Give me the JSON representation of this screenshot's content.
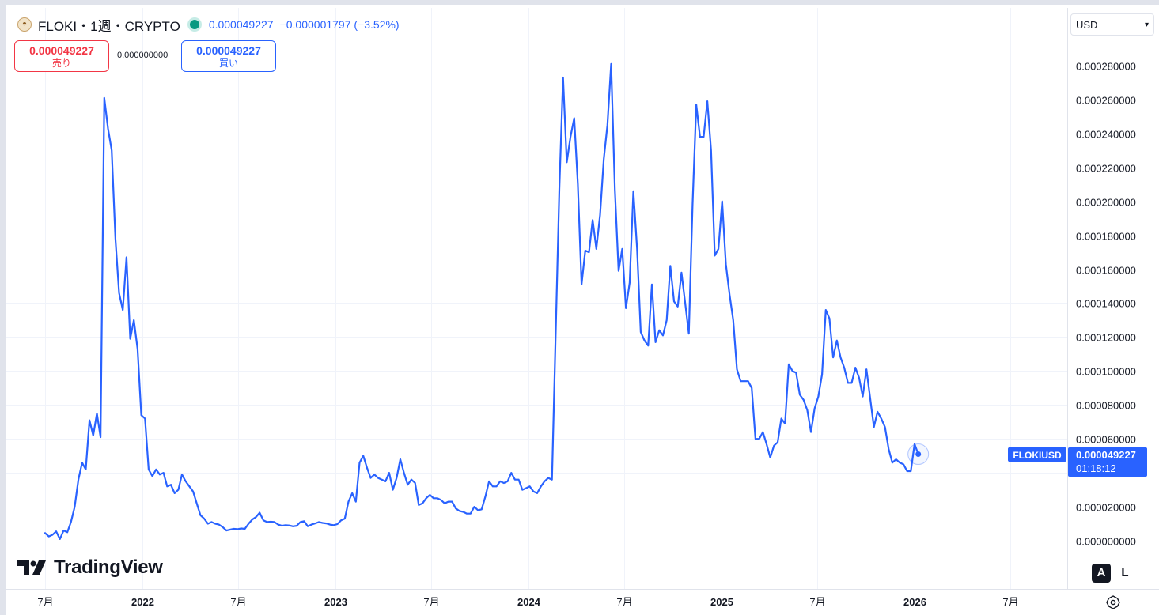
{
  "header": {
    "title": "FLOKI・1週・CRYPTO",
    "price": "0.000049227",
    "change": "−0.000001797 (−3.52%)"
  },
  "trade": {
    "sell_price": "0.000049227",
    "sell_label": "売り",
    "spread": "0.000000000",
    "buy_price": "0.000049227",
    "buy_label": "買い"
  },
  "currency": {
    "selected": "USD"
  },
  "symbol_tag": "FLOKIUSD",
  "last_price": "0.000049227",
  "countdown": "01:18:12",
  "watermark": "TradingView",
  "scale_buttons": [
    "A",
    "L"
  ],
  "colors": {
    "line": "#2962ff",
    "accent": "#2962ff",
    "sell": "#f23645"
  },
  "chart_data": {
    "type": "line",
    "title": "",
    "xlabel": "",
    "ylabel": "",
    "ylim": [
      -1e-05,
      0.00029
    ],
    "yticks": [
      0.00028,
      0.00026,
      0.00024,
      0.00022,
      0.0002,
      0.00018,
      0.00016,
      0.00014,
      0.00012,
      0.0001,
      8e-05,
      6e-05,
      2e-05,
      0.0
    ],
    "ytick_labels": [
      "0.000280000",
      "0.000260000",
      "0.000240000",
      "0.000220000",
      "0.000200000",
      "0.000180000",
      "0.000160000",
      "0.000140000",
      "0.000120000",
      "0.000100000",
      "0.000080000",
      "0.000060000",
      "0.000020000",
      "0.000000000"
    ],
    "xticks": [
      {
        "date": "2021-07-01",
        "label": "7月",
        "bold": false
      },
      {
        "date": "2022-01-01",
        "label": "2022",
        "bold": true
      },
      {
        "date": "2022-07-01",
        "label": "7月",
        "bold": false
      },
      {
        "date": "2023-01-01",
        "label": "2023",
        "bold": true
      },
      {
        "date": "2023-07-01",
        "label": "7月",
        "bold": false
      },
      {
        "date": "2024-01-01",
        "label": "2024",
        "bold": true
      },
      {
        "date": "2024-07-01",
        "label": "7月",
        "bold": false
      },
      {
        "date": "2025-01-01",
        "label": "2025",
        "bold": true
      },
      {
        "date": "2025-07-01",
        "label": "7月",
        "bold": false
      },
      {
        "date": "2026-01-01",
        "label": "2026",
        "bold": true
      },
      {
        "date": "2026-07-01",
        "label": "7月",
        "bold": false
      }
    ],
    "xlim": [
      "2021-05-01",
      "2027-03-01"
    ],
    "grid": true,
    "series": [
      {
        "name": "FLOKIUSD",
        "points": [
          [
            "2021-07-01",
            4.5e-06
          ],
          [
            "2021-07-08",
            2.5e-06
          ],
          [
            "2021-07-15",
            3.5e-06
          ],
          [
            "2021-07-22",
            5.5e-06
          ],
          [
            "2021-07-29",
            1e-06
          ],
          [
            "2021-08-05",
            6e-06
          ],
          [
            "2021-08-12",
            5e-06
          ],
          [
            "2021-08-19",
            1.1e-05
          ],
          [
            "2021-08-26",
            2e-05
          ],
          [
            "2021-09-02",
            3.6e-05
          ],
          [
            "2021-09-09",
            4.6e-05
          ],
          [
            "2021-09-16",
            4.2e-05
          ],
          [
            "2021-09-23",
            7.1e-05
          ],
          [
            "2021-09-30",
            6.2e-05
          ],
          [
            "2021-10-07",
            7.5e-05
          ],
          [
            "2021-10-14",
            6.1e-05
          ],
          [
            "2021-10-21",
            0.000261
          ],
          [
            "2021-10-28",
            0.000243
          ],
          [
            "2021-11-04",
            0.00023
          ],
          [
            "2021-11-11",
            0.000178
          ],
          [
            "2021-11-18",
            0.000146
          ],
          [
            "2021-11-25",
            0.000136
          ],
          [
            "2021-12-02",
            0.000167
          ],
          [
            "2021-12-09",
            0.000119
          ],
          [
            "2021-12-16",
            0.00013
          ],
          [
            "2021-12-23",
            0.000113
          ],
          [
            "2021-12-30",
            7.4e-05
          ],
          [
            "2022-01-06",
            7.2e-05
          ],
          [
            "2022-01-13",
            4.2e-05
          ],
          [
            "2022-01-20",
            3.8e-05
          ],
          [
            "2022-01-27",
            4.2e-05
          ],
          [
            "2022-02-03",
            3.9e-05
          ],
          [
            "2022-02-10",
            4e-05
          ],
          [
            "2022-02-17",
            3.2e-05
          ],
          [
            "2022-02-24",
            3.3e-05
          ],
          [
            "2022-03-03",
            2.8e-05
          ],
          [
            "2022-03-10",
            3e-05
          ],
          [
            "2022-03-17",
            3.9e-05
          ],
          [
            "2022-03-24",
            3.5e-05
          ],
          [
            "2022-03-31",
            3.2e-05
          ],
          [
            "2022-04-07",
            2.9e-05
          ],
          [
            "2022-04-14",
            2.2e-05
          ],
          [
            "2022-04-21",
            1.5e-05
          ],
          [
            "2022-04-28",
            1.3e-05
          ],
          [
            "2022-05-05",
            1e-05
          ],
          [
            "2022-05-12",
            1.1e-05
          ],
          [
            "2022-05-19",
            1e-05
          ],
          [
            "2022-05-26",
            9.5e-06
          ],
          [
            "2022-06-02",
            8e-06
          ],
          [
            "2022-06-09",
            6e-06
          ],
          [
            "2022-06-16",
            6.5e-06
          ],
          [
            "2022-06-23",
            7e-06
          ],
          [
            "2022-06-30",
            6.8e-06
          ],
          [
            "2022-07-07",
            7.2e-06
          ],
          [
            "2022-07-14",
            7e-06
          ],
          [
            "2022-07-21",
            1e-05
          ],
          [
            "2022-07-28",
            1.25e-05
          ],
          [
            "2022-08-04",
            1.4e-05
          ],
          [
            "2022-08-11",
            1.65e-05
          ],
          [
            "2022-08-18",
            1.2e-05
          ],
          [
            "2022-08-25",
            1.1e-05
          ],
          [
            "2022-09-01",
            1.12e-05
          ],
          [
            "2022-09-08",
            1.1e-05
          ],
          [
            "2022-09-15",
            9.5e-06
          ],
          [
            "2022-09-22",
            8.8e-06
          ],
          [
            "2022-09-29",
            9.2e-06
          ],
          [
            "2022-10-06",
            9e-06
          ],
          [
            "2022-10-13",
            8.5e-06
          ],
          [
            "2022-10-20",
            8.8e-06
          ],
          [
            "2022-10-27",
            1.1e-05
          ],
          [
            "2022-11-03",
            1.15e-05
          ],
          [
            "2022-11-10",
            8.5e-06
          ],
          [
            "2022-11-17",
            9.5e-06
          ],
          [
            "2022-11-24",
            1.02e-05
          ],
          [
            "2022-12-01",
            1.1e-05
          ],
          [
            "2022-12-08",
            1.05e-05
          ],
          [
            "2022-12-15",
            1.02e-05
          ],
          [
            "2022-12-22",
            9.5e-06
          ],
          [
            "2022-12-29",
            9.2e-06
          ],
          [
            "2023-01-05",
            9.8e-06
          ],
          [
            "2023-01-12",
            1.2e-05
          ],
          [
            "2023-01-19",
            1.3e-05
          ],
          [
            "2023-01-26",
            2.3e-05
          ],
          [
            "2023-02-02",
            2.8e-05
          ],
          [
            "2023-02-09",
            2.3e-05
          ],
          [
            "2023-02-16",
            4.6e-05
          ],
          [
            "2023-02-23",
            5e-05
          ],
          [
            "2023-03-02",
            4.3e-05
          ],
          [
            "2023-03-09",
            3.7e-05
          ],
          [
            "2023-03-16",
            3.9e-05
          ],
          [
            "2023-03-23",
            3.7e-05
          ],
          [
            "2023-03-30",
            3.6e-05
          ],
          [
            "2023-04-06",
            3.5e-05
          ],
          [
            "2023-04-13",
            4e-05
          ],
          [
            "2023-04-20",
            3e-05
          ],
          [
            "2023-04-27",
            3.7e-05
          ],
          [
            "2023-05-04",
            4.8e-05
          ],
          [
            "2023-05-11",
            4e-05
          ],
          [
            "2023-05-18",
            3.3e-05
          ],
          [
            "2023-05-25",
            3.6e-05
          ],
          [
            "2023-06-01",
            3.4e-05
          ],
          [
            "2023-06-08",
            2.1e-05
          ],
          [
            "2023-06-15",
            2.2e-05
          ],
          [
            "2023-06-22",
            2.5e-05
          ],
          [
            "2023-06-29",
            2.7e-05
          ],
          [
            "2023-07-06",
            2.5e-05
          ],
          [
            "2023-07-13",
            2.5e-05
          ],
          [
            "2023-07-20",
            2.4e-05
          ],
          [
            "2023-07-27",
            2.2e-05
          ],
          [
            "2023-08-03",
            2.3e-05
          ],
          [
            "2023-08-10",
            2.3e-05
          ],
          [
            "2023-08-17",
            1.9e-05
          ],
          [
            "2023-08-24",
            1.75e-05
          ],
          [
            "2023-08-31",
            1.7e-05
          ],
          [
            "2023-09-07",
            1.6e-05
          ],
          [
            "2023-09-14",
            1.6e-05
          ],
          [
            "2023-09-21",
            2e-05
          ],
          [
            "2023-09-28",
            1.8e-05
          ],
          [
            "2023-10-05",
            1.85e-05
          ],
          [
            "2023-10-12",
            2.6e-05
          ],
          [
            "2023-10-19",
            3.5e-05
          ],
          [
            "2023-10-26",
            3.2e-05
          ],
          [
            "2023-11-02",
            3.2e-05
          ],
          [
            "2023-11-09",
            3.5e-05
          ],
          [
            "2023-11-16",
            3.4e-05
          ],
          [
            "2023-11-23",
            3.5e-05
          ],
          [
            "2023-11-30",
            4e-05
          ],
          [
            "2023-12-07",
            3.6e-05
          ],
          [
            "2023-12-14",
            3.6e-05
          ],
          [
            "2023-12-21",
            3e-05
          ],
          [
            "2023-12-28",
            3.1e-05
          ],
          [
            "2024-01-04",
            3.2e-05
          ],
          [
            "2024-01-11",
            2.9e-05
          ],
          [
            "2024-01-18",
            2.8e-05
          ],
          [
            "2024-01-25",
            3.2e-05
          ],
          [
            "2024-02-01",
            3.5e-05
          ],
          [
            "2024-02-08",
            3.7e-05
          ],
          [
            "2024-02-15",
            3.6e-05
          ],
          [
            "2024-02-29",
            0.000207
          ],
          [
            "2024-03-07",
            0.000273
          ],
          [
            "2024-03-14",
            0.000223
          ],
          [
            "2024-03-21",
            0.000238
          ],
          [
            "2024-03-28",
            0.000249
          ],
          [
            "2024-04-04",
            0.00021
          ],
          [
            "2024-04-11",
            0.000151
          ],
          [
            "2024-04-18",
            0.000171
          ],
          [
            "2024-04-25",
            0.00017
          ],
          [
            "2024-05-02",
            0.000189
          ],
          [
            "2024-05-09",
            0.000172
          ],
          [
            "2024-05-16",
            0.000192
          ],
          [
            "2024-05-23",
            0.000225
          ],
          [
            "2024-05-30",
            0.000245
          ],
          [
            "2024-06-06",
            0.000281
          ],
          [
            "2024-06-13",
            0.000207
          ],
          [
            "2024-06-20",
            0.000159
          ],
          [
            "2024-06-27",
            0.000172
          ],
          [
            "2024-07-04",
            0.000137
          ],
          [
            "2024-07-11",
            0.000152
          ],
          [
            "2024-07-18",
            0.000206
          ],
          [
            "2024-07-25",
            0.000172
          ],
          [
            "2024-08-01",
            0.000123
          ],
          [
            "2024-08-08",
            0.000118
          ],
          [
            "2024-08-15",
            0.000115
          ],
          [
            "2024-08-22",
            0.000151
          ],
          [
            "2024-08-29",
            0.000117
          ],
          [
            "2024-09-05",
            0.000124
          ],
          [
            "2024-09-12",
            0.000121
          ],
          [
            "2024-09-19",
            0.00013
          ],
          [
            "2024-09-26",
            0.000162
          ],
          [
            "2024-10-03",
            0.000141
          ],
          [
            "2024-10-10",
            0.000138
          ],
          [
            "2024-10-17",
            0.000158
          ],
          [
            "2024-10-24",
            0.00014
          ],
          [
            "2024-10-31",
            0.000122
          ],
          [
            "2024-11-07",
            0.000198
          ],
          [
            "2024-11-14",
            0.000257
          ],
          [
            "2024-11-21",
            0.000238
          ],
          [
            "2024-11-28",
            0.000238
          ],
          [
            "2024-12-05",
            0.000259
          ],
          [
            "2024-12-12",
            0.00023
          ],
          [
            "2024-12-19",
            0.000168
          ],
          [
            "2024-12-26",
            0.000172
          ],
          [
            "2025-01-02",
            0.0002
          ],
          [
            "2025-01-09",
            0.000163
          ],
          [
            "2025-01-16",
            0.000145
          ],
          [
            "2025-01-23",
            0.00013
          ],
          [
            "2025-01-30",
            0.000101
          ],
          [
            "2025-02-06",
            9.4e-05
          ],
          [
            "2025-02-13",
            9.4e-05
          ],
          [
            "2025-02-20",
            9.4e-05
          ],
          [
            "2025-02-27",
            9e-05
          ],
          [
            "2025-03-06",
            6e-05
          ],
          [
            "2025-03-13",
            6e-05
          ],
          [
            "2025-03-20",
            6.4e-05
          ],
          [
            "2025-03-27",
            5.7e-05
          ],
          [
            "2025-04-03",
            4.9e-05
          ],
          [
            "2025-04-10",
            5.6e-05
          ],
          [
            "2025-04-17",
            5.8e-05
          ],
          [
            "2025-04-24",
            7.2e-05
          ],
          [
            "2025-05-01",
            6.9e-05
          ],
          [
            "2025-05-08",
            0.000104
          ],
          [
            "2025-05-15",
            0.0001
          ],
          [
            "2025-05-22",
            9.9e-05
          ],
          [
            "2025-05-29",
            8.6e-05
          ],
          [
            "2025-06-05",
            8.3e-05
          ],
          [
            "2025-06-12",
            7.7e-05
          ],
          [
            "2025-06-19",
            6.4e-05
          ],
          [
            "2025-06-26",
            7.8e-05
          ],
          [
            "2025-07-03",
            8.5e-05
          ],
          [
            "2025-07-10",
            9.8e-05
          ],
          [
            "2025-07-17",
            0.000136
          ],
          [
            "2025-07-24",
            0.000131
          ],
          [
            "2025-07-31",
            0.000108
          ],
          [
            "2025-08-07",
            0.000118
          ],
          [
            "2025-08-14",
            0.000108
          ],
          [
            "2025-08-21",
            0.000102
          ],
          [
            "2025-08-28",
            9.3e-05
          ],
          [
            "2025-09-04",
            9.3e-05
          ],
          [
            "2025-09-11",
            0.000102
          ],
          [
            "2025-09-18",
            9.6e-05
          ],
          [
            "2025-09-25",
            8.5e-05
          ],
          [
            "2025-10-02",
            0.000101
          ],
          [
            "2025-10-09",
            8.4e-05
          ],
          [
            "2025-10-16",
            6.7e-05
          ],
          [
            "2025-10-23",
            7.6e-05
          ],
          [
            "2025-10-30",
            7.2e-05
          ],
          [
            "2025-11-06",
            6.7e-05
          ],
          [
            "2025-11-13",
            5.4e-05
          ],
          [
            "2025-11-20",
            4.6e-05
          ],
          [
            "2025-11-27",
            4.8e-05
          ],
          [
            "2025-12-04",
            4.6e-05
          ],
          [
            "2025-12-11",
            4.5e-05
          ],
          [
            "2025-12-18",
            4.1e-05
          ],
          [
            "2025-12-25",
            4.1e-05
          ],
          [
            "2026-01-01",
            5.7e-05
          ],
          [
            "2026-01-08",
            5.1e-05
          ]
        ]
      }
    ]
  }
}
